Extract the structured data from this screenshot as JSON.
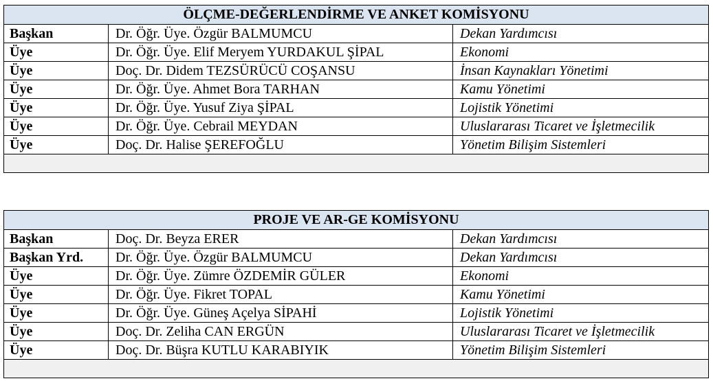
{
  "tables": [
    {
      "title": "ÖLÇME-DEĞERLENDİRME VE ANKET KOMİSYONU",
      "rows": [
        {
          "role": "Başkan",
          "name": "Dr. Öğr. Üye. Özgür BALMUMCU",
          "unit": "Dekan Yardımcısı"
        },
        {
          "role": "Üye",
          "name": "Dr. Öğr. Üye. Elif Meryem YURDAKUL ŞİPAL",
          "unit": "Ekonomi"
        },
        {
          "role": "Üye",
          "name": "Doç. Dr. Didem TEZSÜRÜCÜ COŞANSU",
          "unit": "İnsan Kaynakları Yönetimi"
        },
        {
          "role": "Üye",
          "name": "Dr. Öğr. Üye. Ahmet Bora TARHAN",
          "unit": "Kamu Yönetimi"
        },
        {
          "role": "Üye",
          "name": "Dr. Öğr. Üye. Yusuf Ziya ŞİPAL",
          "unit": "Lojistik Yönetimi"
        },
        {
          "role": "Üye",
          "name": "Dr. Öğr. Üye. Cebrail MEYDAN",
          "unit": "Uluslararası Ticaret ve İşletmecilik"
        },
        {
          "role": "Üye",
          "name": "Doç. Dr. Halise ŞEREFOĞLU",
          "unit": "Yönetim Bilişim Sistemleri"
        }
      ]
    },
    {
      "title": "PROJE VE AR-GE KOMİSYONU",
      "rows": [
        {
          "role": "Başkan",
          "name": "Doç. Dr. Beyza ERER",
          "unit": "Dekan Yardımcısı"
        },
        {
          "role": "Başkan Yrd.",
          "name": "Dr. Öğr. Üye. Özgür BALMUMCU",
          "unit": "Dekan Yardımcısı"
        },
        {
          "role": "Üye",
          "name": "Dr. Öğr. Üye. Zümre ÖZDEMİR GÜLER",
          "unit": "Ekonomi"
        },
        {
          "role": "Üye",
          "name": "Dr. Öğr. Üye. Fikret TOPAL",
          "unit": "Kamu Yönetimi"
        },
        {
          "role": "Üye",
          "name": "Dr. Öğr. Üye. Güneş Açelya SİPAHİ",
          "unit": "Lojistik Yönetimi"
        },
        {
          "role": "Üye",
          "name": "Doç. Dr. Zeliha CAN ERGÜN",
          "unit": "Uluslararası Ticaret ve İşletmecilik"
        },
        {
          "role": "Üye",
          "name": "Doç. Dr. Büşra KUTLU KARABIYIK",
          "unit": "Yönetim Bilişim Sistemleri"
        }
      ]
    }
  ],
  "colors": {
    "header_bg": "#dbe5f1",
    "footer_bg": "#f0f0f0"
  }
}
